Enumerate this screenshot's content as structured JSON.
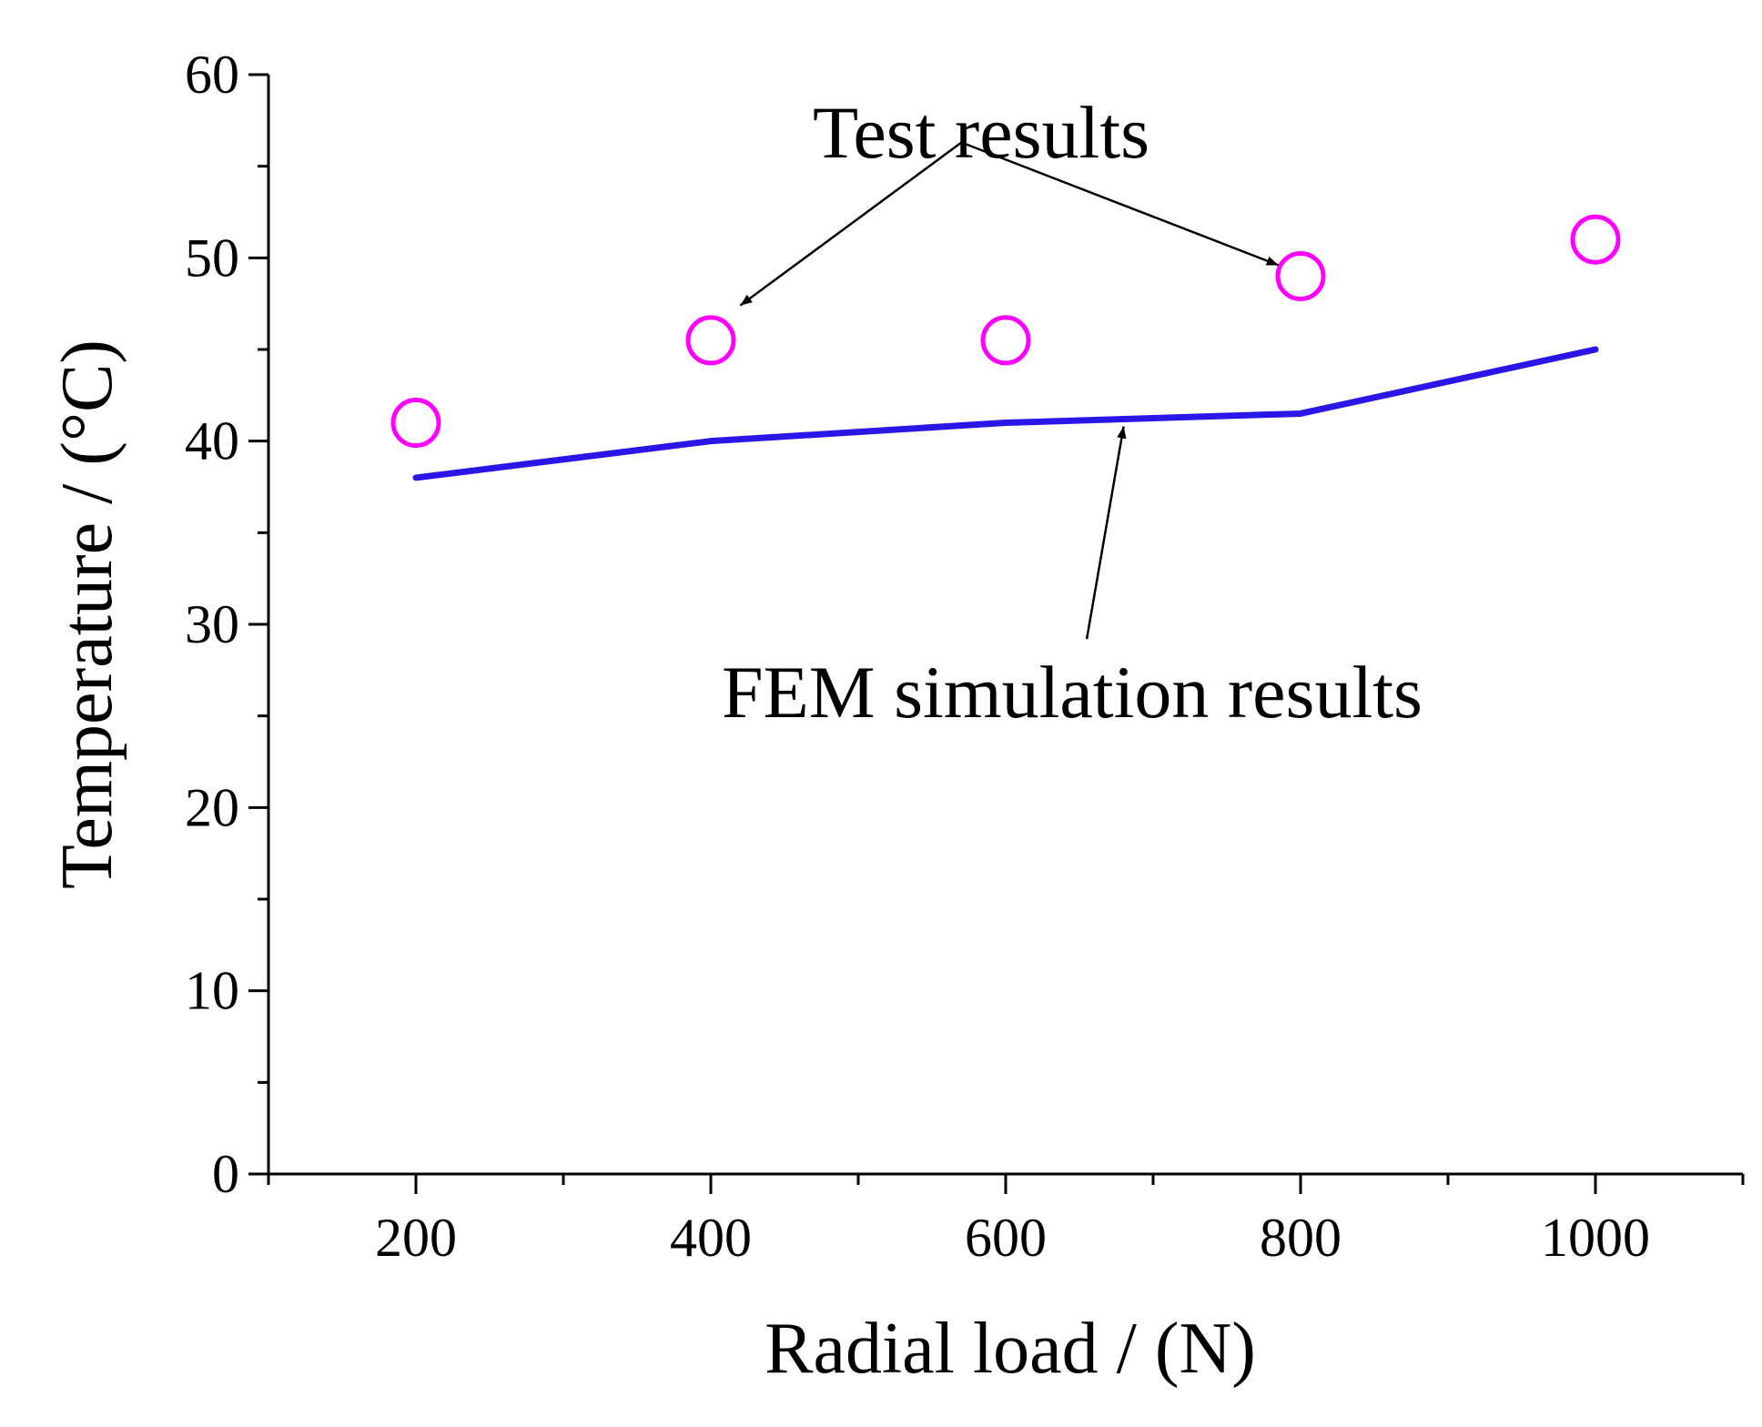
{
  "chart_data": {
    "type": "line",
    "title": "",
    "xlabel": "Radial load / (N)",
    "ylabel": "Temperature / (°C)",
    "xlim": [
      100,
      1100
    ],
    "ylim": [
      0,
      60
    ],
    "xticks": [
      200,
      400,
      600,
      800,
      1000
    ],
    "yticks": [
      0,
      10,
      20,
      30,
      40,
      50,
      60
    ],
    "x_minor_step": 100,
    "y_minor_step": 5,
    "grid": false,
    "series": [
      {
        "name": "FEM simulation results",
        "kind": "line",
        "color": "#2a16e6",
        "x": [
          200,
          400,
          600,
          800,
          1000
        ],
        "y": [
          38.0,
          40.0,
          41.0,
          41.5,
          45.0
        ]
      },
      {
        "name": "Test results",
        "kind": "scatter",
        "marker": "open-circle",
        "color": "#ff00ff",
        "x": [
          200,
          400,
          600,
          800,
          1000
        ],
        "y": [
          41.0,
          45.5,
          45.5,
          49.0,
          51.0
        ]
      }
    ],
    "annotations": [
      {
        "text": "Test results",
        "anchor": [
          570,
          56.3
        ],
        "arrows_to": [
          [
            420,
            47.4
          ],
          [
            785,
            49.6
          ]
        ]
      },
      {
        "text": "FEM simulation results",
        "anchor": [
          655,
          29.2
        ],
        "arrows_to": [
          [
            680,
            40.8
          ]
        ]
      }
    ]
  }
}
